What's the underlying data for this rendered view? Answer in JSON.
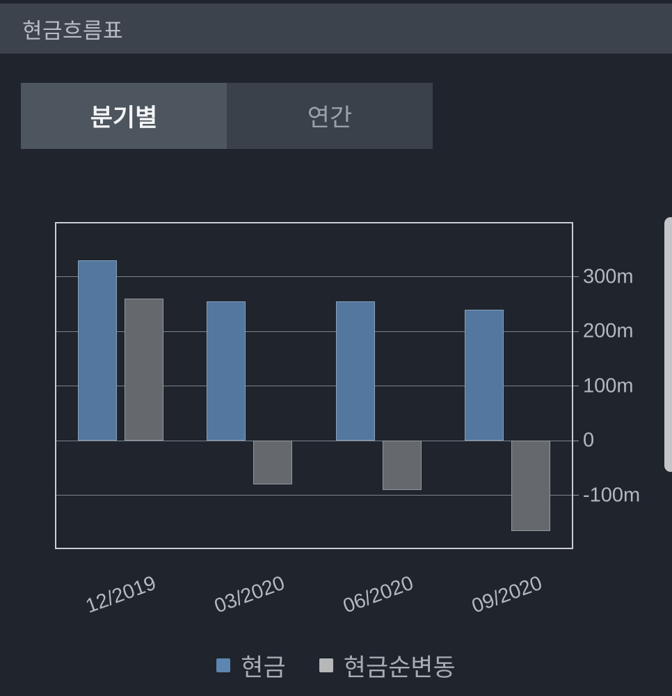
{
  "header": {
    "title": "현금흐름표"
  },
  "tabs": [
    {
      "label": "분기별",
      "active": true
    },
    {
      "label": "연간",
      "active": false
    }
  ],
  "chart_data": {
    "type": "bar",
    "title": "",
    "categories": [
      "12/2019",
      "03/2020",
      "06/2020",
      "09/2020"
    ],
    "series": [
      {
        "key": "cash",
        "name": "현금",
        "values": [
          330,
          255,
          255,
          240
        ],
        "bar_color": "#54779f",
        "legend_color": "#5d85b2"
      },
      {
        "key": "net-change",
        "name": "현금순변동",
        "values": [
          260,
          -80,
          -90,
          -165
        ],
        "bar_color": "#65696e",
        "legend_color": "#b5b7b9"
      }
    ],
    "unit": "m",
    "y_ticks": [
      {
        "value": 300,
        "label": "300m"
      },
      {
        "value": 200,
        "label": "200m"
      },
      {
        "value": 100,
        "label": "100m"
      },
      {
        "value": 0,
        "label": "0"
      },
      {
        "value": -100,
        "label": "-100m"
      }
    ],
    "ylim": [
      -196,
      398
    ],
    "grid": true,
    "y_axis_side": "right",
    "legend_position": "bottom"
  },
  "colors": {
    "background": "#1f242d",
    "header_bg": "#3d434c",
    "tab_active_bg": "#4d555e",
    "tab_inactive_bg": "#3a414a",
    "chart_border": "#cbced2",
    "gridline": "#7d848c",
    "axis_text": "#b4b9bf"
  }
}
